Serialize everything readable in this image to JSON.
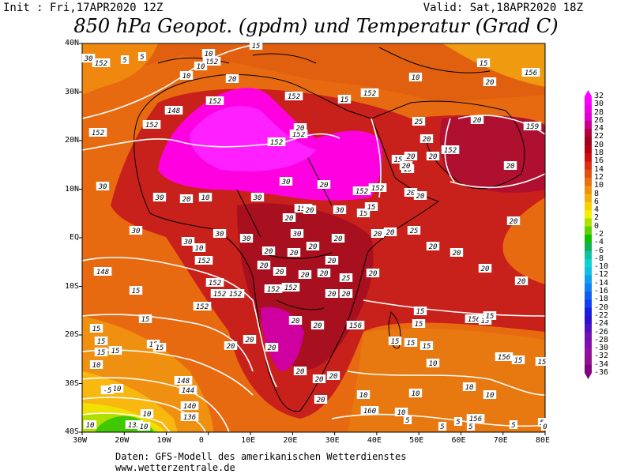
{
  "header": {
    "init": "Init : Fri,17APR2020 12Z",
    "valid": "Valid: Sat,18APR2020 18Z",
    "title": "850 hPa Geopot. (gpdm) und Temperatur (Grad C)"
  },
  "axes": {
    "lat_labels": [
      "40N",
      "30N",
      "20N",
      "10N",
      "EQ",
      "10S",
      "20S",
      "30S",
      "40S"
    ],
    "lon_labels": [
      "30W",
      "20W",
      "10W",
      "0",
      "10E",
      "20E",
      "30E",
      "40E",
      "50E",
      "60E",
      "70E",
      "80E"
    ]
  },
  "legend": {
    "values": [
      "32",
      "30",
      "28",
      "26",
      "24",
      "22",
      "20",
      "18",
      "16",
      "14",
      "12",
      "10",
      "8",
      "6",
      "4",
      "2",
      "0",
      "-2",
      "-4",
      "-6",
      "-8",
      "-10",
      "-12",
      "-14",
      "-16",
      "-18",
      "-20",
      "-22",
      "-24",
      "-26",
      "-28",
      "-30",
      "-32",
      "-34",
      "-36"
    ],
    "colors": [
      "#ff00ff",
      "#f000e8",
      "#e000d0",
      "#c80090",
      "#b00040",
      "#a00018",
      "#b40014",
      "#cc1010",
      "#d83010",
      "#e05010",
      "#e87010",
      "#f09010",
      "#f0b010",
      "#f8d000",
      "#f0f000",
      "#b0e000",
      "#60d000",
      "#10c000",
      "#10b050",
      "#10c0a0",
      "#10d0d0",
      "#10c0e0",
      "#10a0e8",
      "#1080f0",
      "#1060f0",
      "#1040f0",
      "#1820e0",
      "#3010d0",
      "#5010c0",
      "#7010b0",
      "#8010a8",
      "#9010a0",
      "#901090",
      "#800080"
    ]
  },
  "map_labels": {
    "geopotential": [
      "152",
      "152",
      "152",
      "152",
      "152",
      "152",
      "152",
      "152",
      "148",
      "152",
      "152",
      "152",
      "152",
      "152",
      "152",
      "152",
      "152",
      "152",
      "152",
      "152",
      "156",
      "156",
      "156",
      "160",
      "156",
      "148",
      "144",
      "140",
      "136",
      "132",
      "148",
      "152",
      "159",
      "156"
    ],
    "temperature": [
      "10",
      "5",
      "5",
      "10",
      "15",
      "20",
      "10",
      "15",
      "10",
      "15",
      "20",
      "10",
      "20",
      "20",
      "10",
      "25",
      "20",
      "15",
      "15",
      "15",
      "15",
      "20",
      "20",
      "20",
      "25",
      "20",
      "20",
      "20",
      "20",
      "20",
      "20",
      "20",
      "25",
      "20",
      "20",
      "20",
      "20",
      "20",
      "20",
      "20",
      "30",
      "30",
      "30",
      "30",
      "30",
      "30",
      "30",
      "30",
      "30",
      "30",
      "20",
      "20",
      "20",
      "20",
      "20",
      "20",
      "20",
      "20",
      "20",
      "20",
      "15",
      "15",
      "15",
      "15",
      "15",
      "15",
      "15",
      "10",
      "10",
      "10",
      "10",
      "10",
      "15",
      "20",
      "20",
      "20",
      "20",
      "20",
      "20",
      "20",
      "15",
      "15",
      "15",
      "15",
      "15",
      "15",
      "10",
      "10",
      "10",
      "10",
      "15",
      "15",
      "15",
      "10",
      "10",
      "5",
      "5",
      "5",
      "5",
      "5",
      "5",
      "0",
      "-5",
      "10",
      "20",
      "20",
      "20",
      "20",
      "30"
    ]
  },
  "footer": {
    "line1": "Daten: GFS-Modell des amerikanischen Wetterdienstes",
    "line2": "www.wetterzentrale.de"
  }
}
